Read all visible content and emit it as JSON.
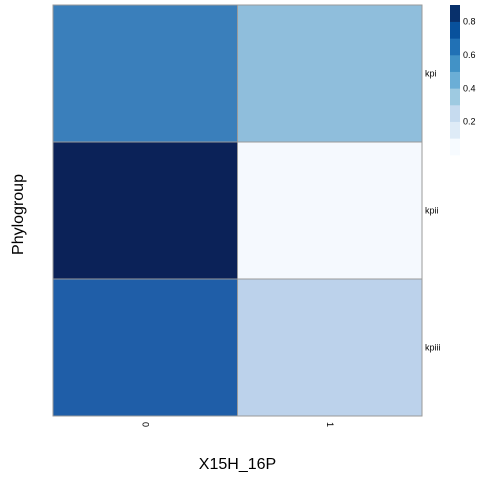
{
  "chart_data": {
    "type": "heatmap",
    "title": "",
    "xlabel": "X15H_16P",
    "ylabel": "Phylogroup",
    "x_categories": [
      "0",
      "1"
    ],
    "y_categories": [
      "kpi",
      "kpii",
      "kpiii"
    ],
    "values": [
      [
        0.6,
        0.35
      ],
      [
        1.0,
        0.0
      ],
      [
        0.7,
        0.2
      ]
    ],
    "colorbar": {
      "range": [
        0,
        0.9
      ],
      "ticks": [
        "0.2",
        "0.4",
        "0.6",
        "0.8"
      ],
      "tick_values": [
        0.2,
        0.4,
        0.6,
        0.8
      ],
      "colors": [
        "#f7fbff",
        "#deebf7",
        "#c6dbef",
        "#9ecae1",
        "#6baed6",
        "#4292c6",
        "#2171b5",
        "#08519c",
        "#08306b"
      ]
    },
    "cell_colors": [
      [
        "#3a7fbb",
        "#8fbedc"
      ],
      [
        "#0b2258",
        "#f5f9fe"
      ],
      [
        "#1f5ea8",
        "#bcd2eb"
      ]
    ],
    "grid": false
  }
}
